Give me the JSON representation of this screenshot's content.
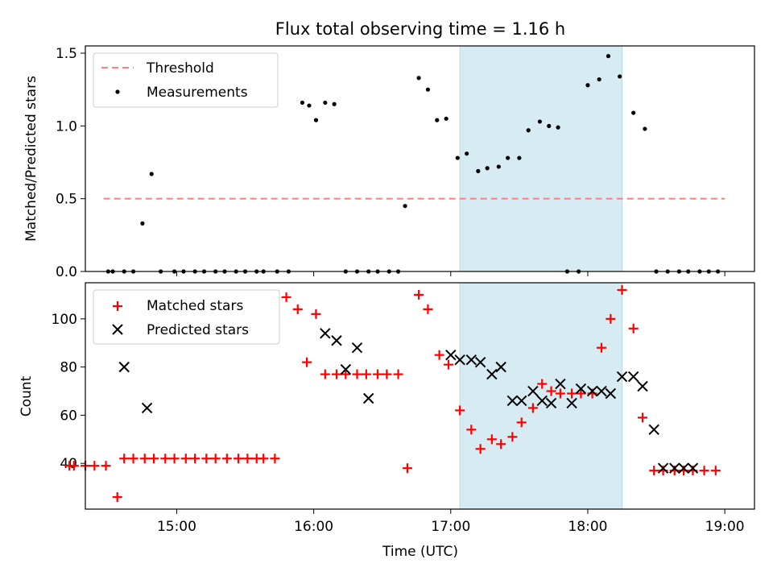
{
  "chart_data": {
    "title": "Flux total observing time = 1.16 h",
    "xlabel": "Time (UTC)",
    "x_ticks": [
      "15:00",
      "16:00",
      "17:00",
      "18:00",
      "19:00"
    ],
    "x_range": [
      "14:20",
      "19:13"
    ],
    "highlight_span": [
      "17:04",
      "18:15"
    ],
    "highlight_color": "#add8e6",
    "top": {
      "type": "scatter",
      "ylabel": "Matched/Predicted stars",
      "ylim": [
        0,
        1.55
      ],
      "y_ticks": [
        "0.0",
        "0.5",
        "1.0",
        "1.5"
      ],
      "legend_position": "top-left",
      "threshold": {
        "name": "Threshold",
        "value": 0.5,
        "x_from": "14:28",
        "x_to": "19:00",
        "color": "#ff7f7f"
      },
      "series": [
        {
          "name": "Measurements",
          "color": "#000000",
          "x": [
            "14:30",
            "14:32",
            "14:37",
            "14:41",
            "14:45",
            "14:49",
            "14:53",
            "14:59",
            "15:03",
            "15:08",
            "15:12",
            "15:17",
            "15:21",
            "15:26",
            "15:30",
            "15:35",
            "15:38",
            "15:44",
            "15:49",
            "15:55",
            "15:58",
            "16:01",
            "16:05",
            "16:09",
            "16:14",
            "16:19",
            "16:24",
            "16:28",
            "16:33",
            "16:37",
            "16:40",
            "16:46",
            "16:50",
            "16:54",
            "16:58",
            "17:03",
            "17:07",
            "17:12",
            "17:16",
            "17:21",
            "17:25",
            "17:30",
            "17:34",
            "17:39",
            "17:43",
            "17:47",
            "17:51",
            "17:56",
            "18:00",
            "18:05",
            "18:09",
            "18:14",
            "18:20",
            "18:25",
            "18:30",
            "18:35",
            "18:40",
            "18:44",
            "18:49",
            "18:53",
            "18:57"
          ],
          "y": [
            0,
            0,
            0,
            0,
            0.33,
            0.67,
            0,
            0,
            0,
            0,
            0,
            0,
            0,
            0,
            0,
            0,
            0,
            0,
            0,
            1.16,
            1.14,
            1.04,
            1.16,
            1.15,
            0,
            0,
            0,
            0,
            0,
            0,
            0.45,
            1.33,
            1.25,
            1.04,
            1.05,
            0.78,
            0.81,
            0.69,
            0.71,
            0.72,
            0.78,
            0.78,
            0.97,
            1.03,
            1.0,
            0.99,
            0,
            0,
            1.28,
            1.32,
            1.48,
            1.34,
            1.09,
            0.98,
            0,
            0,
            0,
            0,
            0,
            0,
            0
          ]
        }
      ]
    },
    "bottom": {
      "type": "scatter",
      "ylabel": "Count",
      "ylim": [
        21,
        115
      ],
      "y_ticks": [
        "40",
        "60",
        "80",
        "100"
      ],
      "legend_position": "top-left",
      "series": [
        {
          "name": "Matched stars",
          "marker": "+",
          "color": "#ff0000",
          "x": [
            "14:13",
            "14:15",
            "14:20",
            "14:24",
            "14:29",
            "14:34",
            "14:37",
            "14:41",
            "14:46",
            "14:50",
            "14:55",
            "14:59",
            "15:04",
            "15:08",
            "15:13",
            "15:17",
            "15:22",
            "15:27",
            "15:31",
            "15:35",
            "15:38",
            "15:43",
            "15:48",
            "15:53",
            "15:57",
            "16:01",
            "16:05",
            "16:10",
            "16:14",
            "16:19",
            "16:23",
            "16:28",
            "16:32",
            "16:37",
            "16:41",
            "16:46",
            "16:50",
            "16:55",
            "16:59",
            "17:04",
            "17:09",
            "17:13",
            "17:18",
            "17:22",
            "17:27",
            "17:31",
            "17:36",
            "17:40",
            "17:44",
            "17:48",
            "17:53",
            "17:57",
            "18:02",
            "18:06",
            "18:10",
            "18:15",
            "18:20",
            "18:24",
            "18:29",
            "18:33",
            "18:38",
            "18:42",
            "18:46",
            "18:51",
            "18:56"
          ],
          "y": [
            39,
            39,
            39,
            39,
            39,
            26,
            42,
            42,
            42,
            42,
            42,
            42,
            42,
            42,
            42,
            42,
            42,
            42,
            42,
            42,
            42,
            42,
            109,
            104,
            82,
            102,
            77,
            77,
            77,
            77,
            77,
            77,
            77,
            77,
            38,
            110,
            104,
            85,
            81,
            62,
            54,
            46,
            50,
            48,
            51,
            57,
            63,
            73,
            70,
            69,
            69,
            69,
            69,
            88,
            100,
            112,
            96,
            59,
            37,
            37,
            37,
            37,
            37,
            37,
            37
          ]
        },
        {
          "name": "Predicted stars",
          "marker": "x",
          "color": "#000000",
          "x": [
            "14:37",
            "14:47",
            "16:05",
            "16:10",
            "16:14",
            "16:19",
            "16:24",
            "17:00",
            "17:04",
            "17:09",
            "17:13",
            "17:18",
            "17:22",
            "17:27",
            "17:31",
            "17:36",
            "17:40",
            "17:44",
            "17:48",
            "17:53",
            "17:57",
            "18:02",
            "18:06",
            "18:10",
            "18:15",
            "18:20",
            "18:24",
            "18:29",
            "18:33",
            "18:38",
            "18:42",
            "18:46"
          ],
          "y": [
            80,
            63,
            94,
            91,
            79,
            88,
            67,
            85,
            83,
            83,
            82,
            77,
            80,
            66,
            66,
            70,
            66,
            65,
            73,
            65,
            71,
            70,
            70,
            69,
            76,
            76,
            72,
            54,
            38,
            38,
            38,
            38
          ]
        }
      ]
    }
  }
}
